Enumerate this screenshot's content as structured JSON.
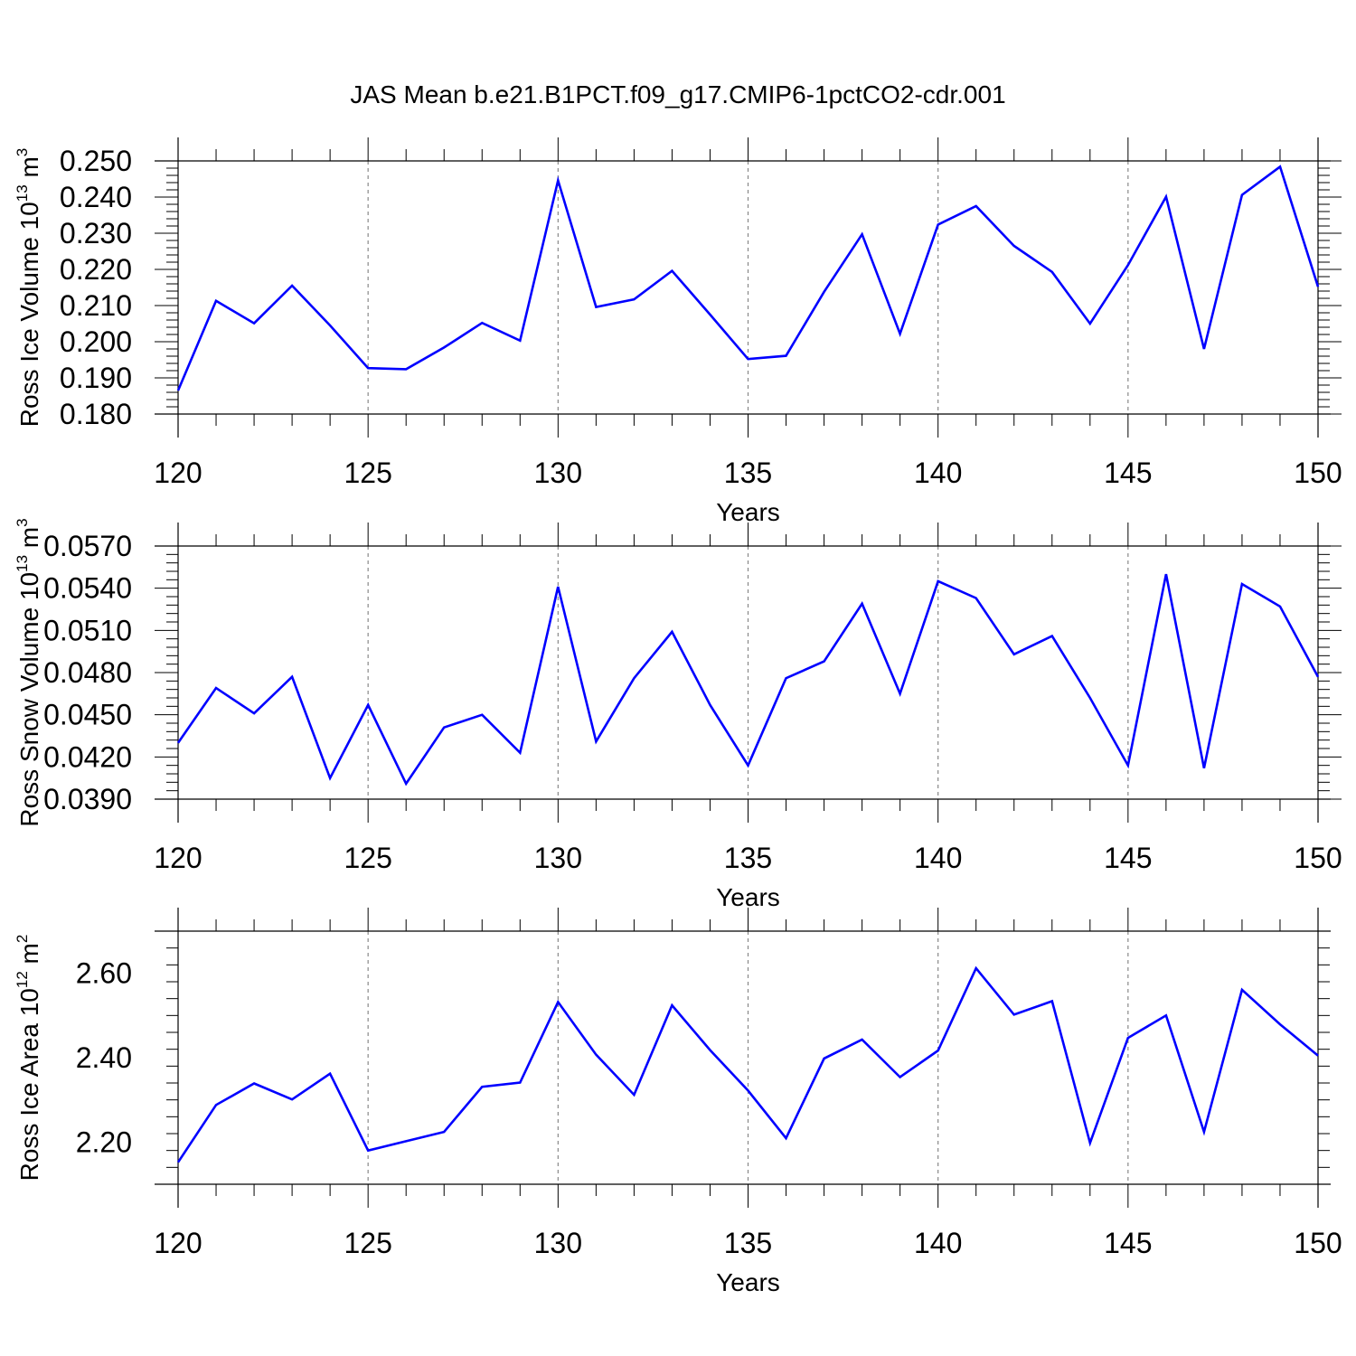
{
  "chart_data": [
    {
      "type": "line",
      "title": "JAS Mean b.e21.B1PCT.f09_g17.CMIP6-1pctCO2-cdr.001",
      "xlabel": "Years",
      "ylabel": "Ross Ice Volume 10",
      "ylabel_exponent": "13",
      "ylabel_unit": "m",
      "ylabel_unit_exponent": "3",
      "xlim": [
        120,
        150
      ],
      "ylim": [
        0.18,
        0.25
      ],
      "xticks": [
        120,
        125,
        130,
        135,
        140,
        145,
        150
      ],
      "yticks": [
        "0.180",
        "0.190",
        "0.200",
        "0.210",
        "0.220",
        "0.230",
        "0.240",
        "0.250"
      ],
      "grid": "vertical dashed at major x ticks",
      "line_color": "#0000ff",
      "x": [
        120,
        121,
        122,
        123,
        124,
        125,
        126,
        127,
        128,
        129,
        130,
        131,
        132,
        133,
        134,
        135,
        136,
        137,
        138,
        139,
        140,
        141,
        142,
        143,
        144,
        145,
        146,
        147,
        148,
        149,
        150
      ],
      "values": [
        0.1865,
        0.2113,
        0.2051,
        0.2155,
        0.2045,
        0.1927,
        0.1924,
        0.1984,
        0.2052,
        0.2003,
        0.2446,
        0.2096,
        0.2117,
        0.2196,
        0.2075,
        0.1952,
        0.1961,
        0.2138,
        0.2297,
        0.2022,
        0.2324,
        0.2375,
        0.2265,
        0.2193,
        0.205,
        0.2212,
        0.2401,
        0.198,
        0.2406,
        0.2484,
        0.2152
      ]
    },
    {
      "type": "line",
      "xlabel": "Years",
      "ylabel": "Ross Snow Volume 10",
      "ylabel_exponent": "13",
      "ylabel_unit": "m",
      "ylabel_unit_exponent": "3",
      "xlim": [
        120,
        150
      ],
      "ylim": [
        0.039,
        0.057
      ],
      "xticks": [
        120,
        125,
        130,
        135,
        140,
        145,
        150
      ],
      "yticks": [
        "0.0390",
        "0.0420",
        "0.0450",
        "0.0480",
        "0.0510",
        "0.0540",
        "0.0570"
      ],
      "grid": "vertical dashed at major x ticks",
      "line_color": "#0000ff",
      "x": [
        120,
        121,
        122,
        123,
        124,
        125,
        126,
        127,
        128,
        129,
        130,
        131,
        132,
        133,
        134,
        135,
        136,
        137,
        138,
        139,
        140,
        141,
        142,
        143,
        144,
        145,
        146,
        147,
        148,
        149,
        150
      ],
      "values": [
        0.043,
        0.0469,
        0.0451,
        0.0477,
        0.0405,
        0.0457,
        0.0401,
        0.0441,
        0.045,
        0.0423,
        0.0541,
        0.0431,
        0.0476,
        0.0509,
        0.0457,
        0.0414,
        0.0476,
        0.0488,
        0.0529,
        0.0465,
        0.0545,
        0.0533,
        0.0493,
        0.0506,
        0.0462,
        0.0414,
        0.055,
        0.0412,
        0.0543,
        0.0527,
        0.0477
      ]
    },
    {
      "type": "line",
      "xlabel": "Years",
      "ylabel": "Ross Ice Area 10",
      "ylabel_exponent": "12",
      "ylabel_unit": "m",
      "ylabel_unit_exponent": "2",
      "xlim": [
        120,
        150
      ],
      "ylim": [
        2.1,
        2.7
      ],
      "xticks": [
        120,
        125,
        130,
        135,
        140,
        145,
        150
      ],
      "yticks": [
        "2.20",
        "2.40",
        "2.60"
      ],
      "grid": "vertical dashed at major x ticks",
      "line_color": "#0000ff",
      "x": [
        120,
        121,
        122,
        123,
        124,
        125,
        126,
        127,
        128,
        129,
        130,
        131,
        132,
        133,
        134,
        135,
        136,
        137,
        138,
        139,
        140,
        141,
        142,
        143,
        144,
        145,
        146,
        147,
        148,
        149,
        150
      ],
      "values": [
        2.152,
        2.288,
        2.339,
        2.301,
        2.362,
        2.18,
        2.202,
        2.224,
        2.331,
        2.341,
        2.532,
        2.407,
        2.312,
        2.524,
        2.418,
        2.322,
        2.209,
        2.398,
        2.443,
        2.354,
        2.417,
        2.612,
        2.502,
        2.534,
        2.198,
        2.447,
        2.5,
        2.224,
        2.561,
        2.479,
        2.405
      ]
    }
  ]
}
